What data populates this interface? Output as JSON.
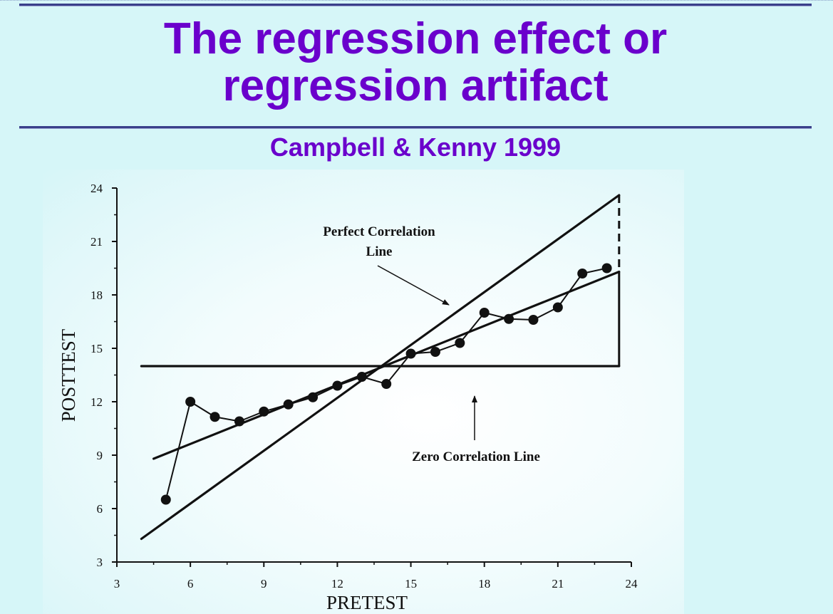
{
  "slide": {
    "title_line1": "The regression effect or",
    "title_line2": "regression artifact",
    "subtitle": "Campbell & Kenny 1999",
    "title_color": "#6a00cc"
  },
  "chart_data": {
    "type": "line",
    "title": "",
    "xlabel": "PRETEST",
    "ylabel": "POSTTEST",
    "xlim": [
      3,
      24
    ],
    "ylim": [
      3,
      24
    ],
    "xticks": [
      3,
      6,
      9,
      12,
      15,
      18,
      21,
      24
    ],
    "yticks": [
      3,
      6,
      9,
      12,
      15,
      18,
      21,
      24
    ],
    "grid": false,
    "series": [
      {
        "kind": "points",
        "x": [
          5,
          6,
          7,
          8,
          9,
          10,
          11,
          12,
          13,
          14,
          15,
          16,
          17,
          18,
          19,
          20,
          21,
          22,
          23
        ],
        "y": [
          6.5,
          12.0,
          11.15,
          10.9,
          11.45,
          11.85,
          12.25,
          12.9,
          13.4,
          13.0,
          14.7,
          14.8,
          15.3,
          17.0,
          16.65,
          16.6,
          17.3,
          19.2,
          19.5
        ]
      },
      {
        "kind": "line",
        "label": "Perfect Correlation Line",
        "x": [
          4,
          23.5
        ],
        "y": [
          4.3,
          23.6
        ]
      },
      {
        "kind": "line",
        "x": [
          4.5,
          23.5
        ],
        "y": [
          8.8,
          19.3
        ]
      },
      {
        "kind": "line",
        "label": "Zero Correlation Line",
        "x": [
          4,
          23.5
        ],
        "y": [
          14,
          14
        ]
      }
    ],
    "annotations": [
      {
        "lines": [
          "Perfect Correlation",
          "Line"
        ]
      },
      {
        "lines": [
          "Zero Correlation Line"
        ]
      }
    ]
  }
}
